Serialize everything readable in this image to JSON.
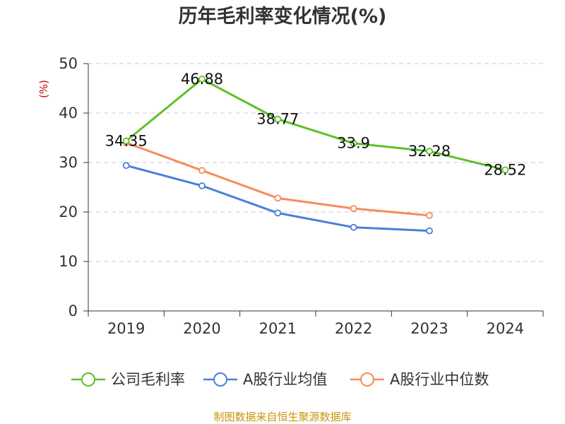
{
  "chart_data": {
    "type": "line",
    "title": "历年毛利率变化情况(%)",
    "ylabel": "(%)",
    "xlabel": "",
    "categories": [
      "2019",
      "2020",
      "2021",
      "2022",
      "2023",
      "2024"
    ],
    "ylim": [
      0,
      50
    ],
    "yticks": [
      0,
      10,
      20,
      30,
      40,
      50
    ],
    "grid": true,
    "legend_position": "bottom",
    "series": [
      {
        "name": "公司毛利率",
        "color": "#5cc12a",
        "values": [
          34.35,
          46.88,
          38.77,
          33.9,
          32.28,
          28.52
        ],
        "labels": [
          "34.35",
          "46.88",
          "38.77",
          "33.9",
          "32.28",
          "28.52"
        ]
      },
      {
        "name": "A股行业均值",
        "color": "#4a7fd9",
        "values": [
          29.4,
          25.3,
          19.8,
          16.9,
          16.2,
          null
        ]
      },
      {
        "name": "A股行业中位数",
        "color": "#f58d5a",
        "values": [
          34.0,
          28.4,
          22.8,
          20.7,
          19.3,
          null
        ]
      }
    ]
  },
  "source_text": "制图数据来自恒生聚源数据库"
}
